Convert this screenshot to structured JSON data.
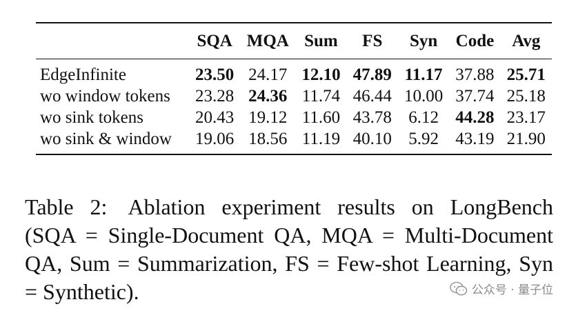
{
  "table": {
    "columns": [
      "",
      "SQA",
      "MQA",
      "Sum",
      "FS",
      "Syn",
      "Code",
      "Avg"
    ],
    "rows": [
      {
        "method": "EdgeInfinite",
        "values": [
          "23.50",
          "24.17",
          "12.10",
          "47.89",
          "11.17",
          "37.88",
          "25.71"
        ],
        "bold": [
          true,
          false,
          true,
          true,
          true,
          false,
          true
        ]
      },
      {
        "method": "wo window tokens",
        "values": [
          "23.28",
          "24.36",
          "11.74",
          "46.44",
          "10.00",
          "37.74",
          "25.18"
        ],
        "bold": [
          false,
          true,
          false,
          false,
          false,
          false,
          false
        ]
      },
      {
        "method": "wo sink tokens",
        "values": [
          "20.43",
          "19.12",
          "11.60",
          "43.78",
          "6.12",
          "44.28",
          "23.17"
        ],
        "bold": [
          false,
          false,
          false,
          false,
          false,
          true,
          false
        ]
      },
      {
        "method": "wo sink & window",
        "values": [
          "19.06",
          "18.56",
          "11.19",
          "40.10",
          "5.92",
          "43.19",
          "21.90"
        ],
        "bold": [
          false,
          false,
          false,
          false,
          false,
          false,
          false
        ]
      }
    ]
  },
  "caption": {
    "label": "Table 2:",
    "text": "Ablation experiment results on LongBench (SQA = Single-Document QA, MQA = Multi-Document QA, Sum = Summarization, FS = Few-shot Learning, Syn = Synthetic)."
  },
  "watermark": {
    "logo_icon": "wechat-logo-icon",
    "text": "公众号 · 量子位"
  }
}
